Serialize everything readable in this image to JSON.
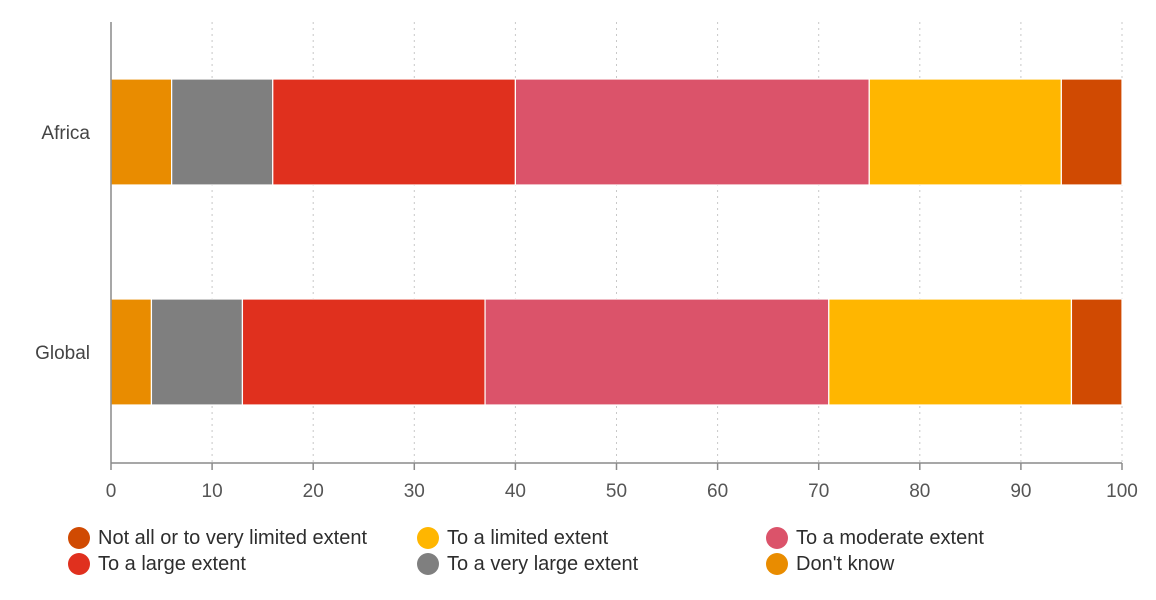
{
  "chart_data": {
    "type": "bar",
    "orientation": "horizontal",
    "stacked": true,
    "categories": [
      "Africa",
      "Global"
    ],
    "series": [
      {
        "name": "Don't know",
        "color": "#e98c00",
        "values": [
          6,
          4
        ]
      },
      {
        "name": "To a very large extent",
        "color": "#7f7f7f",
        "values": [
          10,
          9
        ]
      },
      {
        "name": "To a large extent",
        "color": "#e0301e",
        "values": [
          24,
          24
        ]
      },
      {
        "name": "To a moderate extent",
        "color": "#db536a",
        "values": [
          35,
          34
        ]
      },
      {
        "name": "To a limited extent",
        "color": "#ffb600",
        "values": [
          19,
          24
        ]
      },
      {
        "name": "Not all or to very limited extent",
        "color": "#d04a02",
        "values": [
          6,
          5
        ]
      }
    ],
    "xlim": [
      0,
      100
    ],
    "xticks": [
      0,
      10,
      20,
      30,
      40,
      50,
      60,
      70,
      80,
      90,
      100
    ],
    "grid": "vertical dotted",
    "legend_position": "bottom",
    "legend_order": [
      "Not all or to very limited extent",
      "To a limited extent",
      "To a moderate extent",
      "To a large extent",
      "To a very large extent",
      "Don't know"
    ]
  }
}
